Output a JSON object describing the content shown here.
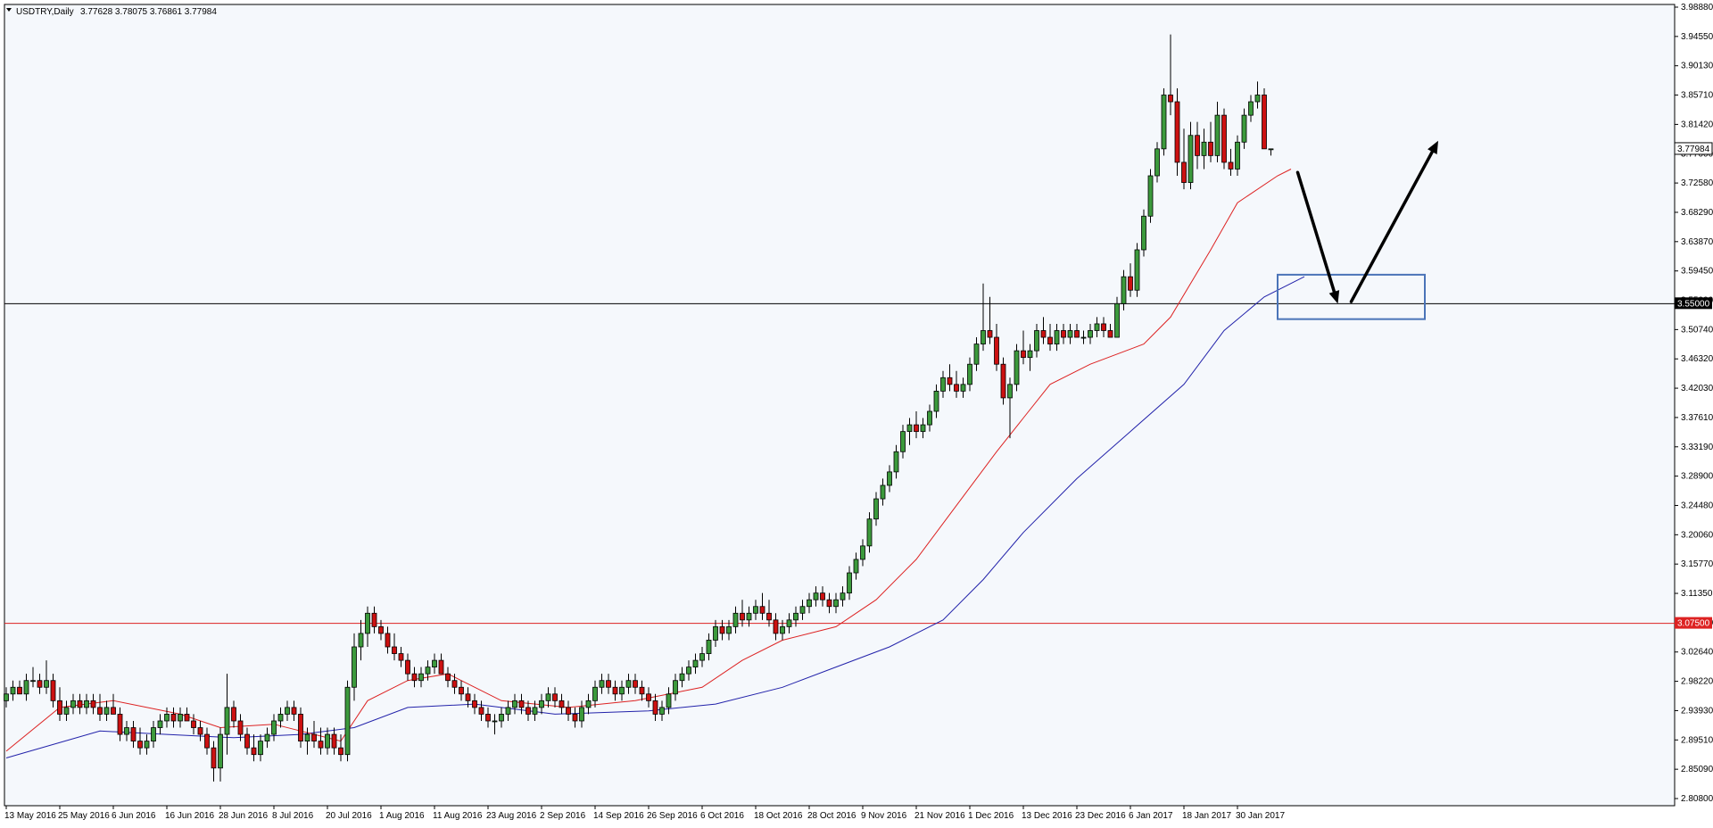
{
  "header": {
    "symbol": "USDTRY,Daily",
    "ohlc": "3.77628 3.78075 3.76861 3.77984"
  },
  "colors": {
    "background": "#f5f8fc",
    "bull": "#3c9a3c",
    "bear": "#cc1111",
    "ma_fast": "#dd2222",
    "ma_slow": "#2222aa",
    "hline_upper": "#000000",
    "hline_lower": "#dd2222",
    "box": "#4a74b8",
    "arrow": "#000000",
    "price_tag": "#ffffff"
  },
  "chart_data": {
    "type": "candlestick",
    "y_ticks": [
      "3.98880",
      "3.94550",
      "3.90130",
      "3.85710",
      "3.81420",
      "3.77000",
      "3.72580",
      "3.68290",
      "3.63870",
      "3.59450",
      "3.55000",
      "3.50740",
      "3.46320",
      "3.42030",
      "3.37610",
      "3.33190",
      "3.28900",
      "3.24480",
      "3.20060",
      "3.15770",
      "3.11350",
      "3.07500",
      "3.02640",
      "2.98220",
      "2.93930",
      "2.89510",
      "2.85090",
      "2.80800"
    ],
    "ylim": [
      2.808,
      3.9888
    ],
    "x_labels": [
      "13 May 2016",
      "25 May 2016",
      "6 Jun 2016",
      "16 Jun 2016",
      "28 Jun 2016",
      "8 Jul 2016",
      "20 Jul 2016",
      "1 Aug 2016",
      "11 Aug 2016",
      "23 Aug 2016",
      "2 Sep 2016",
      "14 Sep 2016",
      "26 Sep 2016",
      "6 Oct 2016",
      "18 Oct 2016",
      "28 Oct 2016",
      "9 Nov 2016",
      "21 Nov 2016",
      "1 Dec 2016",
      "13 Dec 2016",
      "23 Dec 2016",
      "6 Jan 2017",
      "18 Jan 2017",
      "30 Jan 2017"
    ],
    "candles": [
      [
        2.96,
        2.98,
        2.95,
        2.97
      ],
      [
        2.97,
        2.99,
        2.96,
        2.98
      ],
      [
        2.98,
        2.99,
        2.97,
        2.97
      ],
      [
        2.97,
        3.0,
        2.96,
        2.99
      ],
      [
        2.99,
        3.01,
        2.98,
        2.99
      ],
      [
        2.99,
        3.0,
        2.97,
        2.98
      ],
      [
        2.98,
        3.02,
        2.97,
        2.99
      ],
      [
        2.99,
        3.0,
        2.95,
        2.96
      ],
      [
        2.96,
        2.98,
        2.93,
        2.94
      ],
      [
        2.94,
        2.96,
        2.93,
        2.95
      ],
      [
        2.95,
        2.97,
        2.94,
        2.96
      ],
      [
        2.96,
        2.97,
        2.94,
        2.95
      ],
      [
        2.95,
        2.97,
        2.94,
        2.96
      ],
      [
        2.96,
        2.97,
        2.94,
        2.95
      ],
      [
        2.95,
        2.97,
        2.93,
        2.94
      ],
      [
        2.94,
        2.96,
        2.93,
        2.95
      ],
      [
        2.95,
        2.97,
        2.94,
        2.94
      ],
      [
        2.94,
        2.95,
        2.9,
        2.91
      ],
      [
        2.91,
        2.93,
        2.9,
        2.92
      ],
      [
        2.92,
        2.93,
        2.89,
        2.9
      ],
      [
        2.9,
        2.92,
        2.88,
        2.89
      ],
      [
        2.89,
        2.91,
        2.88,
        2.9
      ],
      [
        2.9,
        2.93,
        2.89,
        2.92
      ],
      [
        2.92,
        2.94,
        2.91,
        2.93
      ],
      [
        2.93,
        2.95,
        2.92,
        2.94
      ],
      [
        2.94,
        2.95,
        2.92,
        2.93
      ],
      [
        2.93,
        2.95,
        2.92,
        2.94
      ],
      [
        2.94,
        2.95,
        2.93,
        2.93
      ],
      [
        2.93,
        2.94,
        2.91,
        2.92
      ],
      [
        2.92,
        2.93,
        2.9,
        2.91
      ],
      [
        2.91,
        2.92,
        2.88,
        2.89
      ],
      [
        2.89,
        2.9,
        2.84,
        2.86
      ],
      [
        2.86,
        2.92,
        2.84,
        2.91
      ],
      [
        2.91,
        3.0,
        2.88,
        2.95
      ],
      [
        2.95,
        2.96,
        2.92,
        2.93
      ],
      [
        2.93,
        2.94,
        2.9,
        2.91
      ],
      [
        2.91,
        2.92,
        2.88,
        2.89
      ],
      [
        2.89,
        2.91,
        2.87,
        2.88
      ],
      [
        2.88,
        2.91,
        2.87,
        2.9
      ],
      [
        2.9,
        2.92,
        2.89,
        2.91
      ],
      [
        2.91,
        2.94,
        2.9,
        2.93
      ],
      [
        2.93,
        2.95,
        2.92,
        2.94
      ],
      [
        2.94,
        2.96,
        2.93,
        2.95
      ],
      [
        2.95,
        2.96,
        2.93,
        2.94
      ],
      [
        2.94,
        2.95,
        2.89,
        2.9
      ],
      [
        2.9,
        2.92,
        2.88,
        2.91
      ],
      [
        2.91,
        2.93,
        2.89,
        2.9
      ],
      [
        2.9,
        2.92,
        2.88,
        2.89
      ],
      [
        2.89,
        2.92,
        2.88,
        2.91
      ],
      [
        2.91,
        2.92,
        2.88,
        2.89
      ],
      [
        2.89,
        2.91,
        2.87,
        2.88
      ],
      [
        2.88,
        2.99,
        2.87,
        2.98
      ],
      [
        2.98,
        3.06,
        2.96,
        3.04
      ],
      [
        3.04,
        3.08,
        3.02,
        3.06
      ],
      [
        3.06,
        3.1,
        3.04,
        3.09
      ],
      [
        3.09,
        3.1,
        3.06,
        3.07
      ],
      [
        3.07,
        3.08,
        3.05,
        3.06
      ],
      [
        3.06,
        3.07,
        3.03,
        3.04
      ],
      [
        3.04,
        3.06,
        3.02,
        3.03
      ],
      [
        3.03,
        3.04,
        3.01,
        3.02
      ],
      [
        3.02,
        3.03,
        2.99,
        3.0
      ],
      [
        3.0,
        3.01,
        2.98,
        2.99
      ],
      [
        2.99,
        3.01,
        2.98,
        3.0
      ],
      [
        3.0,
        3.02,
        2.99,
        3.01
      ],
      [
        3.01,
        3.03,
        3.0,
        3.02
      ],
      [
        3.02,
        3.03,
        3.0,
        3.0
      ],
      [
        3.0,
        3.01,
        2.98,
        2.99
      ],
      [
        2.99,
        3.0,
        2.97,
        2.98
      ],
      [
        2.98,
        2.99,
        2.96,
        2.97
      ],
      [
        2.97,
        2.98,
        2.95,
        2.96
      ],
      [
        2.96,
        2.97,
        2.94,
        2.95
      ],
      [
        2.95,
        2.96,
        2.93,
        2.94
      ],
      [
        2.94,
        2.95,
        2.92,
        2.93
      ],
      [
        2.93,
        2.94,
        2.91,
        2.93
      ],
      [
        2.93,
        2.95,
        2.92,
        2.94
      ],
      [
        2.94,
        2.96,
        2.93,
        2.95
      ],
      [
        2.95,
        2.97,
        2.94,
        2.96
      ],
      [
        2.96,
        2.97,
        2.94,
        2.95
      ],
      [
        2.95,
        2.96,
        2.93,
        2.94
      ],
      [
        2.94,
        2.96,
        2.93,
        2.95
      ],
      [
        2.95,
        2.97,
        2.94,
        2.96
      ],
      [
        2.96,
        2.98,
        2.95,
        2.97
      ],
      [
        2.97,
        2.98,
        2.95,
        2.96
      ],
      [
        2.96,
        2.97,
        2.94,
        2.95
      ],
      [
        2.95,
        2.96,
        2.93,
        2.94
      ],
      [
        2.94,
        2.95,
        2.92,
        2.93
      ],
      [
        2.93,
        2.96,
        2.92,
        2.95
      ],
      [
        2.95,
        2.97,
        2.94,
        2.96
      ],
      [
        2.96,
        2.99,
        2.95,
        2.98
      ],
      [
        2.98,
        3.0,
        2.97,
        2.99
      ],
      [
        2.99,
        3.0,
        2.97,
        2.98
      ],
      [
        2.98,
        2.99,
        2.96,
        2.97
      ],
      [
        2.97,
        2.99,
        2.96,
        2.98
      ],
      [
        2.98,
        3.0,
        2.97,
        2.99
      ],
      [
        2.99,
        3.0,
        2.97,
        2.98
      ],
      [
        2.98,
        2.99,
        2.96,
        2.97
      ],
      [
        2.97,
        2.98,
        2.95,
        2.96
      ],
      [
        2.96,
        2.97,
        2.93,
        2.94
      ],
      [
        2.94,
        2.96,
        2.93,
        2.95
      ],
      [
        2.95,
        2.98,
        2.94,
        2.97
      ],
      [
        2.97,
        3.0,
        2.96,
        2.99
      ],
      [
        2.99,
        3.01,
        2.98,
        3.0
      ],
      [
        3.0,
        3.02,
        2.99,
        3.01
      ],
      [
        3.01,
        3.03,
        3.0,
        3.02
      ],
      [
        3.02,
        3.04,
        3.01,
        3.03
      ],
      [
        3.03,
        3.06,
        3.02,
        3.05
      ],
      [
        3.05,
        3.08,
        3.04,
        3.07
      ],
      [
        3.07,
        3.08,
        3.05,
        3.06
      ],
      [
        3.06,
        3.08,
        3.05,
        3.07
      ],
      [
        3.07,
        3.1,
        3.06,
        3.09
      ],
      [
        3.09,
        3.11,
        3.07,
        3.08
      ],
      [
        3.08,
        3.1,
        3.07,
        3.09
      ],
      [
        3.09,
        3.11,
        3.08,
        3.1
      ],
      [
        3.1,
        3.12,
        3.08,
        3.09
      ],
      [
        3.09,
        3.11,
        3.07,
        3.08
      ],
      [
        3.08,
        3.09,
        3.05,
        3.06
      ],
      [
        3.06,
        3.08,
        3.05,
        3.07
      ],
      [
        3.07,
        3.09,
        3.06,
        3.08
      ],
      [
        3.08,
        3.1,
        3.07,
        3.09
      ],
      [
        3.09,
        3.11,
        3.08,
        3.1
      ],
      [
        3.1,
        3.12,
        3.09,
        3.11
      ],
      [
        3.11,
        3.13,
        3.1,
        3.12
      ],
      [
        3.12,
        3.13,
        3.1,
        3.11
      ],
      [
        3.11,
        3.12,
        3.09,
        3.1
      ],
      [
        3.1,
        3.12,
        3.09,
        3.11
      ],
      [
        3.11,
        3.13,
        3.1,
        3.12
      ],
      [
        3.12,
        3.16,
        3.11,
        3.15
      ],
      [
        3.15,
        3.18,
        3.14,
        3.17
      ],
      [
        3.17,
        3.2,
        3.16,
        3.19
      ],
      [
        3.19,
        3.24,
        3.18,
        3.23
      ],
      [
        3.23,
        3.27,
        3.22,
        3.26
      ],
      [
        3.26,
        3.29,
        3.25,
        3.28
      ],
      [
        3.28,
        3.31,
        3.27,
        3.3
      ],
      [
        3.3,
        3.34,
        3.29,
        3.33
      ],
      [
        3.33,
        3.37,
        3.32,
        3.36
      ],
      [
        3.36,
        3.38,
        3.34,
        3.37
      ],
      [
        3.37,
        3.39,
        3.35,
        3.36
      ],
      [
        3.36,
        3.38,
        3.35,
        3.37
      ],
      [
        3.37,
        3.4,
        3.36,
        3.39
      ],
      [
        3.39,
        3.43,
        3.38,
        3.42
      ],
      [
        3.42,
        3.45,
        3.41,
        3.44
      ],
      [
        3.44,
        3.46,
        3.42,
        3.43
      ],
      [
        3.43,
        3.45,
        3.41,
        3.42
      ],
      [
        3.42,
        3.44,
        3.41,
        3.43
      ],
      [
        3.43,
        3.47,
        3.42,
        3.46
      ],
      [
        3.46,
        3.5,
        3.45,
        3.49
      ],
      [
        3.49,
        3.58,
        3.48,
        3.51
      ],
      [
        3.51,
        3.56,
        3.49,
        3.5
      ],
      [
        3.5,
        3.52,
        3.45,
        3.46
      ],
      [
        3.46,
        3.47,
        3.4,
        3.41
      ],
      [
        3.41,
        3.44,
        3.35,
        3.43
      ],
      [
        3.43,
        3.49,
        3.42,
        3.48
      ],
      [
        3.48,
        3.51,
        3.46,
        3.47
      ],
      [
        3.47,
        3.49,
        3.45,
        3.48
      ],
      [
        3.48,
        3.52,
        3.47,
        3.51
      ],
      [
        3.51,
        3.53,
        3.49,
        3.5
      ],
      [
        3.5,
        3.52,
        3.48,
        3.49
      ],
      [
        3.49,
        3.52,
        3.48,
        3.51
      ],
      [
        3.51,
        3.52,
        3.49,
        3.5
      ],
      [
        3.5,
        3.52,
        3.49,
        3.51
      ],
      [
        3.51,
        3.52,
        3.5,
        3.5
      ],
      [
        3.5,
        3.51,
        3.49,
        3.5
      ],
      [
        3.5,
        3.52,
        3.49,
        3.51
      ],
      [
        3.51,
        3.53,
        3.5,
        3.52
      ],
      [
        3.52,
        3.53,
        3.5,
        3.51
      ],
      [
        3.51,
        3.52,
        3.5,
        3.5
      ],
      [
        3.5,
        3.56,
        3.5,
        3.55
      ],
      [
        3.55,
        3.6,
        3.54,
        3.59
      ],
      [
        3.59,
        3.61,
        3.56,
        3.57
      ],
      [
        3.57,
        3.64,
        3.56,
        3.63
      ],
      [
        3.63,
        3.69,
        3.62,
        3.68
      ],
      [
        3.68,
        3.75,
        3.67,
        3.74
      ],
      [
        3.74,
        3.79,
        3.73,
        3.78
      ],
      [
        3.78,
        3.87,
        3.77,
        3.86
      ],
      [
        3.86,
        3.95,
        3.83,
        3.85
      ],
      [
        3.85,
        3.87,
        3.74,
        3.76
      ],
      [
        3.76,
        3.81,
        3.72,
        3.73
      ],
      [
        3.73,
        3.82,
        3.72,
        3.8
      ],
      [
        3.8,
        3.82,
        3.75,
        3.77
      ],
      [
        3.77,
        3.81,
        3.75,
        3.79
      ],
      [
        3.79,
        3.82,
        3.76,
        3.77
      ],
      [
        3.77,
        3.85,
        3.76,
        3.83
      ],
      [
        3.83,
        3.84,
        3.75,
        3.76
      ],
      [
        3.76,
        3.78,
        3.74,
        3.75
      ],
      [
        3.75,
        3.8,
        3.74,
        3.79
      ],
      [
        3.79,
        3.84,
        3.78,
        3.83
      ],
      [
        3.83,
        3.86,
        3.82,
        3.85
      ],
      [
        3.85,
        3.88,
        3.84,
        3.86
      ],
      [
        3.86,
        3.87,
        3.78,
        3.78
      ],
      [
        3.78,
        3.78,
        3.77,
        3.78
      ]
    ],
    "ma_fast": [
      [
        0,
        2.885
      ],
      [
        8,
        2.95
      ],
      [
        16,
        2.96
      ],
      [
        26,
        2.94
      ],
      [
        32,
        2.92
      ],
      [
        40,
        2.925
      ],
      [
        50,
        2.9
      ],
      [
        54,
        2.96
      ],
      [
        60,
        2.99
      ],
      [
        66,
        3.0
      ],
      [
        74,
        2.96
      ],
      [
        84,
        2.95
      ],
      [
        94,
        2.96
      ],
      [
        104,
        2.98
      ],
      [
        110,
        3.02
      ],
      [
        116,
        3.05
      ],
      [
        124,
        3.07
      ],
      [
        130,
        3.11
      ],
      [
        136,
        3.17
      ],
      [
        142,
        3.25
      ],
      [
        148,
        3.33
      ],
      [
        152,
        3.38
      ],
      [
        156,
        3.43
      ],
      [
        162,
        3.46
      ],
      [
        170,
        3.49
      ],
      [
        174,
        3.53
      ],
      [
        180,
        3.63
      ],
      [
        184,
        3.7
      ],
      [
        190,
        3.74
      ],
      [
        192,
        3.75
      ]
    ],
    "ma_slow": [
      [
        0,
        2.875
      ],
      [
        14,
        2.915
      ],
      [
        24,
        2.91
      ],
      [
        34,
        2.905
      ],
      [
        44,
        2.91
      ],
      [
        52,
        2.92
      ],
      [
        60,
        2.95
      ],
      [
        70,
        2.955
      ],
      [
        82,
        2.94
      ],
      [
        96,
        2.945
      ],
      [
        106,
        2.955
      ],
      [
        116,
        2.98
      ],
      [
        124,
        3.01
      ],
      [
        132,
        3.04
      ],
      [
        140,
        3.08
      ],
      [
        146,
        3.14
      ],
      [
        152,
        3.21
      ],
      [
        160,
        3.29
      ],
      [
        168,
        3.36
      ],
      [
        176,
        3.43
      ],
      [
        182,
        3.51
      ],
      [
        188,
        3.56
      ],
      [
        194,
        3.59
      ]
    ],
    "h_lines": [
      {
        "value": 3.55,
        "label": "3.55000",
        "color": "#000000"
      },
      {
        "value": 3.075,
        "label": "3.07500",
        "color": "#dd2222"
      }
    ],
    "current_price": {
      "value": 3.77984,
      "label": "3.77984"
    },
    "annotation_box": {
      "i_from": 190,
      "i_to": 212,
      "y_from": 3.593,
      "y_to": 3.527
    },
    "arrows": [
      {
        "from": [
          193,
          3.745
        ],
        "to": [
          199,
          3.55
        ]
      },
      {
        "from": [
          201,
          3.553
        ],
        "to": [
          214,
          3.792
        ]
      }
    ]
  }
}
